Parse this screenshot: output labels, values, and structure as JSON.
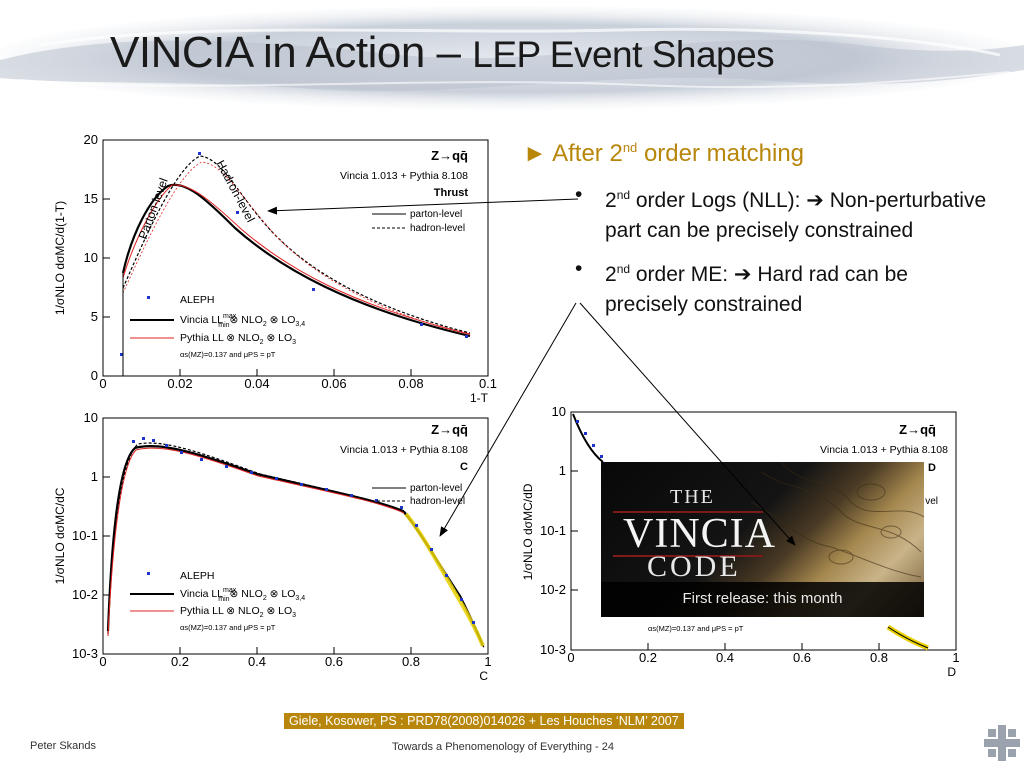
{
  "title": {
    "part1": "VINCIA in Action – ",
    "part2": "LEP Event Shapes"
  },
  "bullets": {
    "main": {
      "pre": "After 2",
      "sup": "nd",
      "post": " order matching"
    },
    "items": [
      {
        "pre": "2",
        "sup": "nd",
        "mid": " order Logs (NLL): ",
        "arrow": "➔",
        "post": " Non-perturbative part can be precisely constrained"
      },
      {
        "pre": "2",
        "sup": "nd",
        "mid": " order ME: ",
        "arrow": "➔",
        "post": " Hard rad can be precisely constrained"
      }
    ]
  },
  "plots": {
    "thrust": {
      "zqq": "Z→qq̄",
      "version": "Vincia 1.013 + Pythia 8.108",
      "name": "Thrust",
      "legend_parton": "parton-level",
      "legend_hadron": "hadron-level",
      "aleph": "ALEPH",
      "vincia_ll": "Vincia LL",
      "ll_sup": "max",
      "ll_sub": "min",
      "vincia_rest": "⊗ NLO",
      "vincia_sub2": "2",
      "vincia_rest2": " ⊗ LO",
      "vincia_sub3": "3,4",
      "pythia": "Pythia LL ⊗ NLO",
      "pythia_sub2": "2",
      "pythia_rest": " ⊗ LO",
      "pythia_sub3": "3",
      "alphas": "αs(MZ)=0.137 and μPS = pT",
      "ylabel": "1/σNLO dσMC/d(1-T)",
      "xlabel": "1-T",
      "parton_annot": "Parton-level",
      "hadron_annot": "Hadron-level",
      "xticks": [
        "0",
        "0.02",
        "0.04",
        "0.06",
        "0.08",
        "0.1"
      ],
      "yticks": [
        "0",
        "5",
        "10",
        "15",
        "20"
      ]
    },
    "c_param": {
      "zqq": "Z→qq̄",
      "version": "Vincia 1.013 + Pythia 8.108",
      "name": "C",
      "legend_parton": "parton-level",
      "legend_hadron": "hadron-level",
      "aleph": "ALEPH",
      "vincia_ll": "Vincia LL",
      "ll_sup": "max",
      "ll_sub": "min",
      "vincia_rest": "⊗ NLO",
      "vincia_sub2": "2",
      "vincia_rest2": " ⊗ LO",
      "vincia_sub3": "3,4",
      "pythia": "Pythia LL ⊗ NLO",
      "pythia_sub2": "2",
      "pythia_rest": " ⊗ LO",
      "pythia_sub3": "3",
      "alphas": "αs(MZ)=0.137 and μPS = pT",
      "ylabel": "1/σNLO dσMC/dC",
      "xlabel": "C",
      "xticks": [
        "0",
        "0.2",
        "0.4",
        "0.6",
        "0.8",
        "1"
      ],
      "yticks": [
        "10",
        "1",
        "10-1",
        "10-2",
        "10-3"
      ]
    },
    "d_param": {
      "zqq": "Z→qq̄",
      "version": "Vincia 1.013 + Pythia 8.108",
      "name": "D",
      "legend_tail": "vel",
      "alphas": "αs(MZ)=0.137 and μPS = pT",
      "ylabel": "1/σNLO dσMC/dD",
      "xlabel": "D",
      "xticks": [
        "0",
        "0.2",
        "0.4",
        "0.6",
        "0.8",
        "1"
      ],
      "yticks": [
        "10",
        "1",
        "10-1",
        "10-2",
        "10-3"
      ]
    }
  },
  "vincia_code": {
    "the": "THE",
    "vincia": "VINCIA",
    "code": "CODE",
    "caption": "First release: this month"
  },
  "citation": "Giele, Kosower, PS : PRD78(2008)014026  + Les Houches ‘NLM’ 2007",
  "footer": {
    "author": "Peter Skands",
    "center": "Towards a Phenomenology of Everything - 24"
  },
  "colors": {
    "accent": "#b8860b",
    "data_points": "#1a35c8",
    "pythia_line": "#e02020",
    "caption_band": "#b8860b"
  }
}
